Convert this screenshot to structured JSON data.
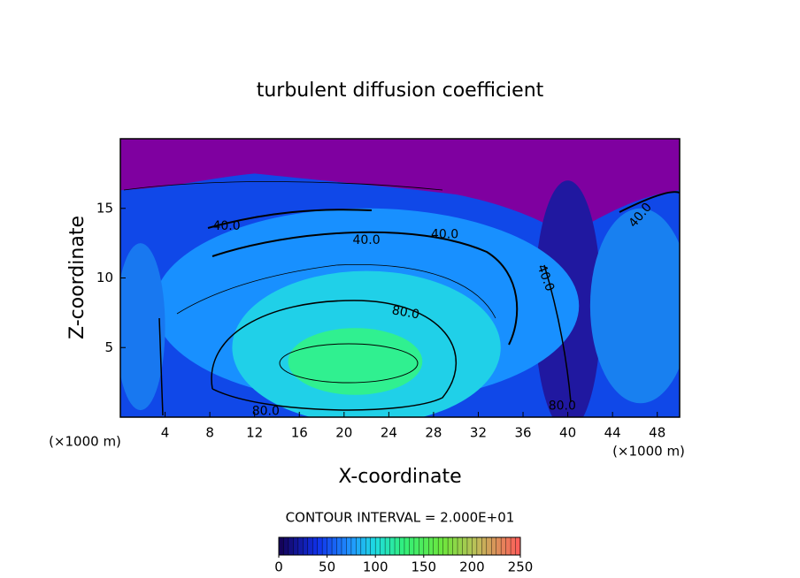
{
  "chart_data": {
    "type": "contour",
    "title": "turbulent diffusion coefficient",
    "x_label": "X-coordinate",
    "y_label": "Z-coordinate",
    "x_unit_left": "(×1000 m)",
    "x_unit_right": "(×1000 m)",
    "xlim": [
      0,
      50
    ],
    "xticks": [
      4,
      8,
      12,
      16,
      20,
      24,
      28,
      32,
      36,
      40,
      44,
      48
    ],
    "ylim": [
      0,
      20
    ],
    "yticks": [
      5,
      10,
      15
    ],
    "regions": [
      {
        "value": 0,
        "color": "#7f00a0"
      },
      {
        "value": 40,
        "color": "#1048e8"
      },
      {
        "value": 20,
        "color": "#2018a0"
      },
      {
        "value": 60,
        "color": "#1890ff"
      },
      {
        "value": 60,
        "color": "#1880f0"
      },
      {
        "value": 60,
        "color": "#1878f0"
      },
      {
        "value": 90,
        "color": "#20d0e8"
      },
      {
        "value": 120,
        "color": "#30f090"
      }
    ],
    "contour_labels": [
      {
        "value": 40,
        "label": "40.0"
      },
      {
        "value": 40,
        "label": "40.0"
      },
      {
        "value": 40,
        "label": "40.0"
      },
      {
        "value": 40,
        "label": "40.0"
      },
      {
        "value": 40,
        "label": "40.0"
      },
      {
        "value": 80,
        "label": "80.0"
      },
      {
        "value": 80,
        "label": "80.0"
      },
      {
        "value": 80,
        "label": "80.0"
      }
    ],
    "footer": "CONTOUR INTERVAL = 2.000E+01",
    "colorbar": {
      "lim": [
        0,
        250
      ],
      "ticks": [
        0,
        50,
        100,
        150,
        200,
        250
      ]
    }
  }
}
